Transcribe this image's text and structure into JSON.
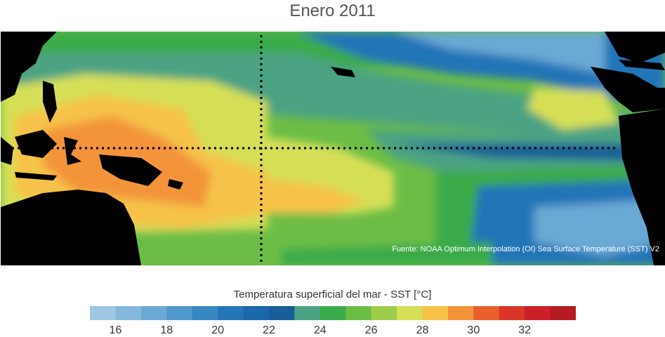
{
  "title": "Enero 2011",
  "source_note": "Fuente: NOAA Optimum Interpolation (OI) Sea Surface Temperature (SST) V2",
  "colorbar": {
    "label": "Temperatura superficial del mar - SST  [°C]",
    "range": [
      15,
      33
    ],
    "step": 1,
    "colors": [
      "#9ec8e4",
      "#85b8dc",
      "#6ba9d4",
      "#4f98cb",
      "#3787c2",
      "#2375b7",
      "#1a67a9",
      "#195e98",
      "#4ba383",
      "#3aab4a",
      "#6cbd46",
      "#9ccd4b",
      "#d5df57",
      "#f6c248",
      "#f3943a",
      "#e9602d",
      "#da3527",
      "#cc1f28",
      "#b51b21"
    ],
    "ticks": [
      16,
      18,
      20,
      22,
      24,
      26,
      28,
      30,
      32
    ]
  },
  "map_colors": {
    "land": "#000000",
    "sst_26": "#9ccd4b",
    "sst_27": "#d5df57",
    "sst_28": "#f6c248",
    "sst_29": "#f3943a",
    "sst_25": "#6cbd46",
    "sst_24": "#3aab4a",
    "sst_23": "#4ba383",
    "sst_22": "#195e98",
    "sst_21": "#1a67a9",
    "sst_20": "#2375b7",
    "sst_19": "#3787c2",
    "sst_18": "#4f98cb",
    "sst_17": "#6ba9d4",
    "sst_16": "#85b8dc",
    "sst_15": "#9ec8e4"
  }
}
